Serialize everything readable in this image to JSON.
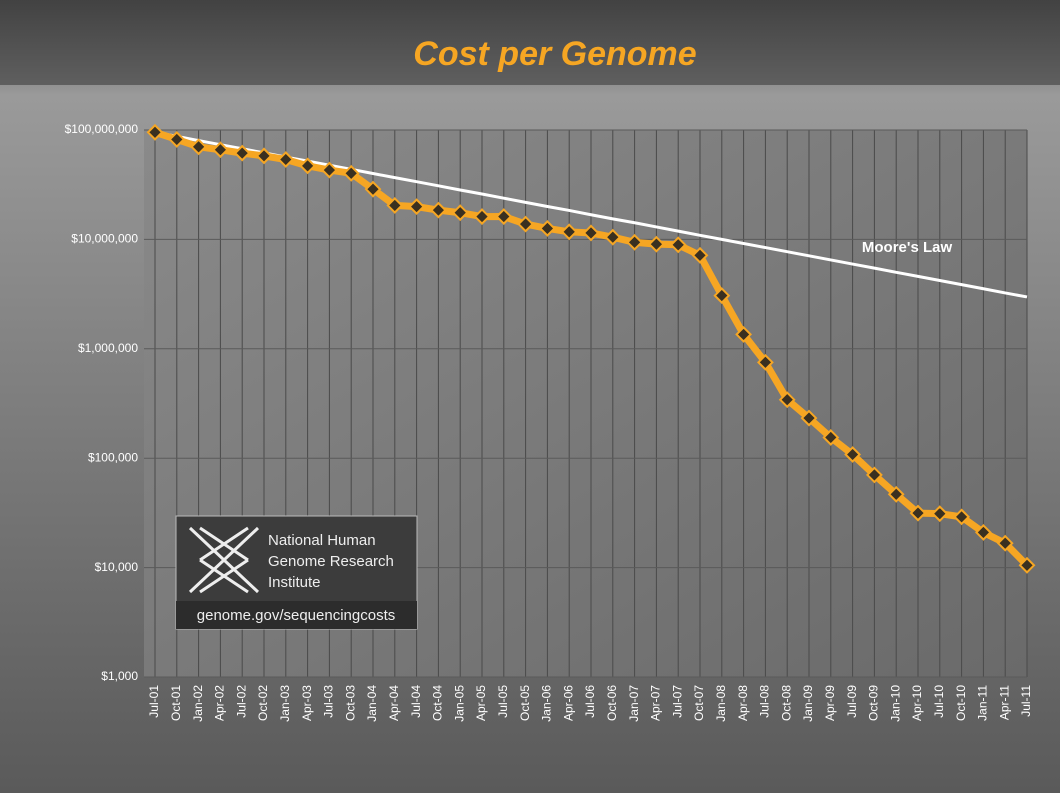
{
  "chart_data": {
    "type": "line",
    "title": "Cost per Genome",
    "categories": [
      "Jul-01",
      "Oct-01",
      "Jan-02",
      "Apr-02",
      "Jul-02",
      "Oct-02",
      "Jan-03",
      "Apr-03",
      "Jul-03",
      "Oct-03",
      "Jan-04",
      "Apr-04",
      "Jul-04",
      "Oct-04",
      "Jan-05",
      "Apr-05",
      "Jul-05",
      "Oct-05",
      "Jan-06",
      "Apr-06",
      "Jul-06",
      "Oct-06",
      "Jan-07",
      "Apr-07",
      "Jul-07",
      "Oct-07",
      "Jan-08",
      "Apr-08",
      "Jul-08",
      "Oct-08",
      "Jan-09",
      "Apr-09",
      "Jul-09",
      "Oct-09",
      "Jan-10",
      "Apr-10",
      "Jul-10",
      "Oct-10",
      "Jan-11",
      "Apr-11",
      "Jul-11"
    ],
    "series": [
      {
        "color": "#f6a623",
        "values": [
          95263072,
          82000000,
          70175437,
          66000000,
          61448422,
          58000000,
          53751684,
          47000000,
          43000000,
          40157554,
          28780376,
          20442576,
          19934346,
          18519312,
          17534970,
          16159699,
          16180224,
          13801124,
          12585659,
          11732535,
          11455315,
          10474556,
          9408739,
          9047003,
          8927342,
          7147571,
          3063820,
          1352982,
          752080,
          342502,
          232735,
          154714,
          108065,
          70333,
          46774,
          31512,
          31125,
          29092,
          20963,
          16712,
          10497
        ]
      },
      {
        "name": "Moore's Law",
        "color": "#ffffff",
        "values": [
          95300000,
          87400000,
          80100000,
          73400000,
          67400000,
          61800000,
          56600000,
          51900000,
          47600000,
          43700000,
          40000000,
          36700000,
          33700000,
          30900000,
          28300000,
          26000000,
          23800000,
          21800000,
          20000000,
          18400000,
          16800000,
          15400000,
          14200000,
          13000000,
          11900000,
          10900000,
          10000000,
          9180000,
          8420000,
          7720000,
          7080000,
          6490000,
          5950000,
          5460000,
          5000000,
          4590000,
          4210000,
          3860000,
          3540000,
          3240000,
          2980000
        ]
      }
    ],
    "ylim": [
      1000,
      100000000
    ],
    "log_scale": true,
    "yticks": [
      {
        "value": 1000,
        "label": "$1,000"
      },
      {
        "value": 10000,
        "label": "$10,000"
      },
      {
        "value": 100000,
        "label": "$100,000"
      },
      {
        "value": 1000000,
        "label": "$1,000,000"
      },
      {
        "value": 10000000,
        "label": "$10,000,000"
      },
      {
        "value": 100000000,
        "label": "$100,000,000"
      }
    ],
    "grid": true,
    "logo": {
      "name": "National Human Genome Research Institute",
      "lines": [
        "National Human",
        "Genome Research",
        "Institute"
      ],
      "url": "genome.gov/sequencingcosts"
    }
  }
}
